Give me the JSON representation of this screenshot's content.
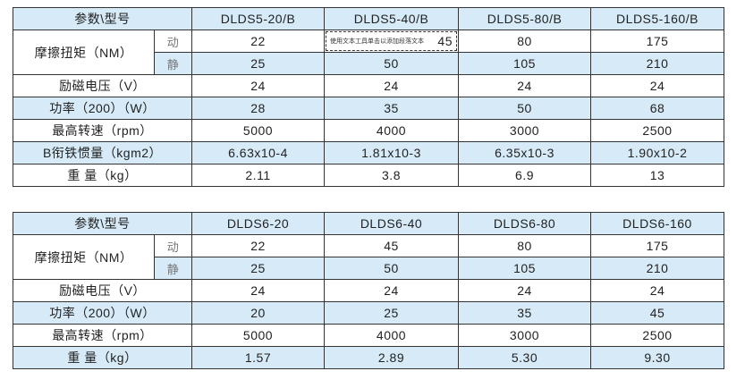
{
  "placeholder_overlay": "使用文本工具单击以添加段落文本",
  "table1": {
    "header": [
      "参数\\型号",
      "DLDS5-20/B",
      "DLDS5-40/B",
      "DLDS5-80/B",
      "DLDS5-160/B"
    ],
    "friction_label": "摩擦扭矩（NM）",
    "dynamic_label": "动",
    "static_label": "静",
    "dynamic": [
      "22",
      "45",
      "80",
      "175"
    ],
    "static": [
      "25",
      "50",
      "105",
      "210"
    ],
    "rows": [
      {
        "label": "励磁电压（V）",
        "values": [
          "24",
          "24",
          "24",
          "24"
        ]
      },
      {
        "label": "功率（200）（W）",
        "values": [
          "28",
          "35",
          "50",
          "68"
        ]
      },
      {
        "label": "最高转速（rpm）",
        "values": [
          "5000",
          "4000",
          "3000",
          "2500"
        ]
      },
      {
        "label": "B衔铁惯量（kgm2）",
        "values": [
          "6.63x10-4",
          "1.81x10-3",
          "6.35x10-3",
          "1.90x10-2"
        ]
      },
      {
        "label": "重 量（kg）",
        "values": [
          "2.11",
          "3.8",
          "6.9",
          "13"
        ]
      }
    ]
  },
  "table2": {
    "header": [
      "参数\\型号",
      "DLDS6-20",
      "DLDS6-40",
      "DLDS6-80",
      "DLDS6-160"
    ],
    "friction_label": "摩擦扭矩（NM）",
    "dynamic_label": "动",
    "static_label": "静",
    "dynamic": [
      "22",
      "45",
      "80",
      "175"
    ],
    "static": [
      "25",
      "50",
      "105",
      "210"
    ],
    "rows": [
      {
        "label": "励磁电压（V）",
        "values": [
          "24",
          "24",
          "24",
          "24"
        ]
      },
      {
        "label": "功率（200）（W）",
        "values": [
          "20",
          "25",
          "35",
          "45"
        ]
      },
      {
        "label": "最高转速（rpm）",
        "values": [
          "5000",
          "4000",
          "3000",
          "2500"
        ]
      },
      {
        "label": "重 量（kg）",
        "values": [
          "1.57",
          "2.89",
          "5.30",
          "9.30"
        ]
      }
    ]
  },
  "colors": {
    "row_blue": "#d6eaf8",
    "border": "#333333"
  }
}
